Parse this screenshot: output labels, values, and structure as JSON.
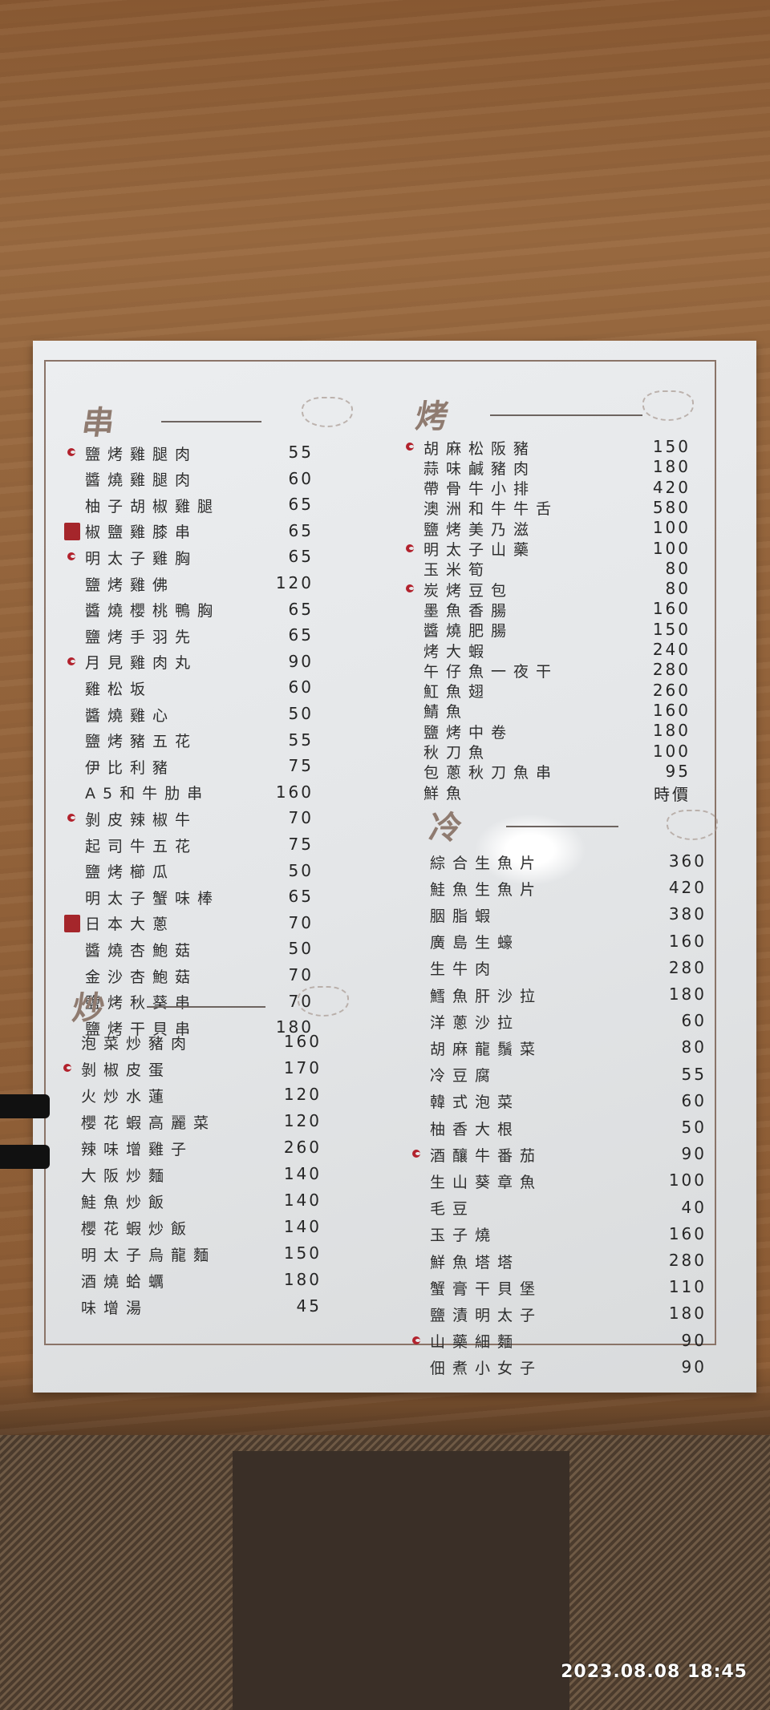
{
  "sections": [
    {
      "id": "skewer",
      "title": "串",
      "items": [
        {
          "name": "鹽烤雞腿肉",
          "price": "55",
          "mark": "chili"
        },
        {
          "name": "醬燒雞腿肉",
          "price": "60"
        },
        {
          "name": "柚子胡椒雞腿",
          "price": "65"
        },
        {
          "name": "椒鹽雞膝串",
          "price": "65",
          "mark": "seal"
        },
        {
          "name": "明太子雞胸",
          "price": "65",
          "mark": "chili"
        },
        {
          "name": "鹽烤雞佛",
          "price": "120"
        },
        {
          "name": "醬燒櫻桃鴨胸",
          "price": "65"
        },
        {
          "name": "鹽烤手羽先",
          "price": "65"
        },
        {
          "name": "月見雞肉丸",
          "price": "90",
          "mark": "chili"
        },
        {
          "name": "雞松坂",
          "price": "60"
        },
        {
          "name": "醬燒雞心",
          "price": "50"
        },
        {
          "name": "鹽烤豬五花",
          "price": "55"
        },
        {
          "name": "伊比利豬",
          "price": "75"
        },
        {
          "name": "A5和牛肋串",
          "price": "160"
        },
        {
          "name": "剝皮辣椒牛",
          "price": "70",
          "mark": "chili"
        },
        {
          "name": "起司牛五花",
          "price": "75"
        },
        {
          "name": "鹽烤櫛瓜",
          "price": "50"
        },
        {
          "name": "明太子蟹味棒",
          "price": "65"
        },
        {
          "name": "日本大蔥",
          "price": "70",
          "mark": "seal"
        },
        {
          "name": "醬燒杏鮑菇",
          "price": "50"
        },
        {
          "name": "金沙杏鮑菇",
          "price": "70"
        },
        {
          "name": "鹽烤秋葵串",
          "price": "70"
        },
        {
          "name": "鹽烤干貝串",
          "price": "180"
        }
      ]
    },
    {
      "id": "stirfry",
      "title": "炒",
      "items": [
        {
          "name": "泡菜炒豬肉",
          "price": "160"
        },
        {
          "name": "剝椒皮蛋",
          "price": "170",
          "mark": "chili"
        },
        {
          "name": "火炒水蓮",
          "price": "120"
        },
        {
          "name": "櫻花蝦高麗菜",
          "price": "120"
        },
        {
          "name": "辣味增雞子",
          "price": "260"
        },
        {
          "name": "大阪炒麵",
          "price": "140"
        },
        {
          "name": "鮭魚炒飯",
          "price": "140"
        },
        {
          "name": "櫻花蝦炒飯",
          "price": "140"
        },
        {
          "name": "明太子烏龍麵",
          "price": "150"
        },
        {
          "name": "酒燒蛤蠣",
          "price": "180"
        },
        {
          "name": "味增湯",
          "price": "45"
        }
      ]
    },
    {
      "id": "grill",
      "title": "烤",
      "items": [
        {
          "name": "胡麻松阪豬",
          "price": "150",
          "mark": "chili"
        },
        {
          "name": "蒜味鹹豬肉",
          "price": "180"
        },
        {
          "name": "帶骨牛小排",
          "price": "420"
        },
        {
          "name": "澳洲和牛牛舌",
          "price": "580"
        },
        {
          "name": "鹽烤美乃滋",
          "price": "100"
        },
        {
          "name": "明太子山藥",
          "price": "100",
          "mark": "chili"
        },
        {
          "name": "玉米筍",
          "price": "80"
        },
        {
          "name": "炭烤豆包",
          "price": "80",
          "mark": "chili"
        },
        {
          "name": "墨魚香腸",
          "price": "160"
        },
        {
          "name": "醬燒肥腸",
          "price": "150"
        },
        {
          "name": "烤大蝦",
          "price": "240"
        },
        {
          "name": "午仔魚一夜干",
          "price": "280"
        },
        {
          "name": "魟魚翅",
          "price": "260"
        },
        {
          "name": "鯖魚",
          "price": "160"
        },
        {
          "name": "鹽烤中卷",
          "price": "180"
        },
        {
          "name": "秋刀魚",
          "price": "100"
        },
        {
          "name": "包蔥秋刀魚串",
          "price": "95"
        },
        {
          "name": "鮮魚",
          "price": "時價"
        }
      ]
    },
    {
      "id": "cold",
      "title": "冷",
      "items": [
        {
          "name": "綜合生魚片",
          "price": "360"
        },
        {
          "name": "鮭魚生魚片",
          "price": "420"
        },
        {
          "name": "胭脂蝦",
          "price": "380"
        },
        {
          "name": "廣島生蠔",
          "price": "160"
        },
        {
          "name": "生牛肉",
          "price": "280"
        },
        {
          "name": "鱈魚肝沙拉",
          "price": "180"
        },
        {
          "name": "洋蔥沙拉",
          "price": "60"
        },
        {
          "name": "胡麻龍鬚菜",
          "price": "80"
        },
        {
          "name": "冷豆腐",
          "price": "55"
        },
        {
          "name": "韓式泡菜",
          "price": "60"
        },
        {
          "name": "柚香大根",
          "price": "50"
        },
        {
          "name": "酒釀牛番茄",
          "price": "90",
          "mark": "chili"
        },
        {
          "name": "生山葵章魚",
          "price": "100"
        },
        {
          "name": "毛豆",
          "price": "40"
        },
        {
          "name": "玉子燒",
          "price": "160"
        },
        {
          "name": "鮮魚塔塔",
          "price": "280"
        },
        {
          "name": "蟹膏干貝堡",
          "price": "110"
        },
        {
          "name": "鹽漬明太子",
          "price": "180"
        },
        {
          "name": "山藥細麵",
          "price": "90",
          "mark": "chili"
        },
        {
          "name": "佃煮小女子",
          "price": "90"
        }
      ]
    }
  ],
  "photo_timestamp": "2023.08.08  18:45",
  "colors": {
    "chili_mark": "#b2222d",
    "seal_mark": "#a5262b",
    "section_heading": "#8f7b70"
  }
}
